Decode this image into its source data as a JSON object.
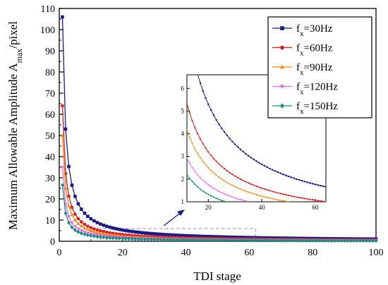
{
  "chart_data": {
    "type": "line",
    "xlabel": "TDI stage",
    "ylabel": "Maximum Allowable Amplitude A",
    "ylabel_sub": "max",
    "ylabel_suffix": "/pixel",
    "xlim": [
      0,
      100
    ],
    "ylim": [
      0,
      110
    ],
    "xticks": [
      0,
      20,
      40,
      60,
      80,
      100
    ],
    "yticks": [
      10,
      20,
      30,
      40,
      50,
      60,
      70,
      80,
      90,
      100,
      110
    ],
    "legend_position": "top-right",
    "x": [
      1,
      2,
      3,
      4,
      5,
      6,
      7,
      8,
      9,
      10,
      11,
      12,
      13,
      14,
      15,
      16,
      17,
      18,
      19,
      20,
      21,
      22,
      23,
      24,
      25,
      26,
      27,
      28,
      29,
      30,
      31,
      32,
      33,
      34,
      35,
      36,
      37,
      38,
      39,
      40,
      41,
      42,
      43,
      44,
      45,
      46,
      47,
      48,
      49,
      50,
      51,
      52,
      53,
      54,
      55,
      56,
      57,
      58,
      59,
      60,
      61,
      62,
      63,
      64,
      65,
      66,
      67,
      68,
      69,
      70,
      71,
      72,
      73,
      74,
      75,
      76,
      77,
      78,
      79,
      80,
      81,
      82,
      83,
      84,
      85,
      86,
      87,
      88,
      89,
      90,
      91,
      92,
      93,
      94,
      95,
      96,
      97,
      98,
      99,
      100
    ],
    "series": [
      {
        "name": "f",
        "sub": "x",
        "suffix": "=30Hz",
        "color": "#1a1a8c",
        "marker": "square",
        "k": 106
      },
      {
        "name": "f",
        "sub": "x",
        "suffix": "=60Hz",
        "color": "#e01818",
        "marker": "circle",
        "k": 64
      },
      {
        "name": "f",
        "sub": "x",
        "suffix": "=90Hz",
        "color": "#f08a10",
        "marker": "triangle-up",
        "k": 50
      },
      {
        "name": "f",
        "sub": "x",
        "suffix": "=120Hz",
        "color": "#f068f0",
        "marker": "triangle-down",
        "k": 35
      },
      {
        "name": "f",
        "sub": "x",
        "suffix": "=150Hz",
        "color": "#1a8c80",
        "marker": "diamond",
        "k": 26.5
      }
    ],
    "inset": {
      "xlim": [
        12,
        64
      ],
      "ylim": [
        1,
        6.6
      ],
      "xticks": [
        20,
        40,
        60
      ],
      "yticks": [
        1,
        2,
        3,
        4,
        5,
        6
      ]
    }
  }
}
